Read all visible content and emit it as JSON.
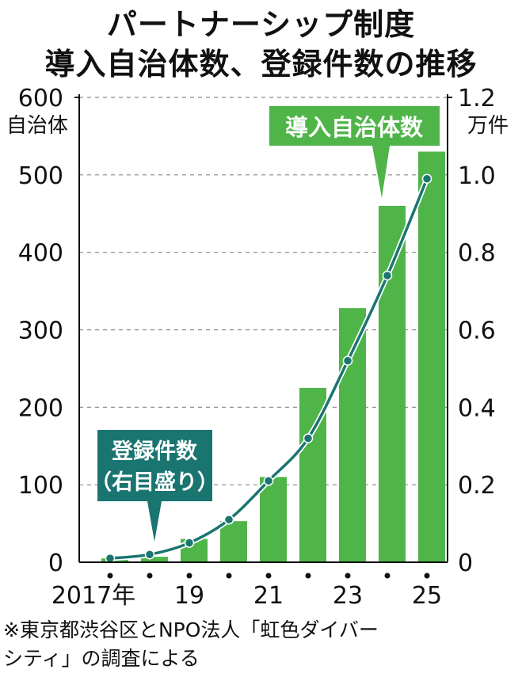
{
  "title_line1": "パートナーシップ制度",
  "title_line2": "導入自治体数、登録件数の推移",
  "note_line1": "※東京都渋谷区とNPO法人「虹色ダイバー",
  "note_line2": "シティ」の調査による",
  "colors": {
    "bar": "#4fb548",
    "line": "#1a7570",
    "grid": "#888888",
    "axis": "#111111"
  },
  "chart_data": {
    "type": "bar+line",
    "categories": [
      "2017",
      "2018",
      "2019",
      "2020",
      "2021",
      "2022",
      "2023",
      "2024",
      "2025"
    ],
    "x_tick_labels": [
      "2017年",
      "",
      "19",
      "",
      "21",
      "",
      "23",
      "",
      "25"
    ],
    "series": [
      {
        "name": "導入自治体数",
        "type": "bar",
        "axis": "left",
        "values": [
          5,
          7,
          30,
          53,
          110,
          225,
          328,
          460,
          530
        ]
      },
      {
        "name": "登録件数（右目盛り）",
        "type": "line",
        "axis": "right",
        "values": [
          0.01,
          0.02,
          0.05,
          0.11,
          0.21,
          0.32,
          0.52,
          0.74,
          0.99
        ]
      }
    ],
    "left_axis": {
      "unit": "自治体",
      "ylim": [
        0,
        600
      ],
      "ticks": [
        "0",
        "100",
        "200",
        "300",
        "400",
        "500",
        "600"
      ]
    },
    "right_axis": {
      "unit": "万件",
      "ylim": [
        0,
        1.2
      ],
      "ticks": [
        "0",
        "0.2",
        "0.4",
        "0.6",
        "0.8",
        "1.0",
        "1.2"
      ]
    },
    "callouts": [
      {
        "text": "導入自治体数",
        "points_to": "導入自治体数"
      },
      {
        "line1": "登録件数",
        "line2": "（右目盛り）",
        "points_to": "登録件数（右目盛り）"
      }
    ],
    "grid": true
  }
}
